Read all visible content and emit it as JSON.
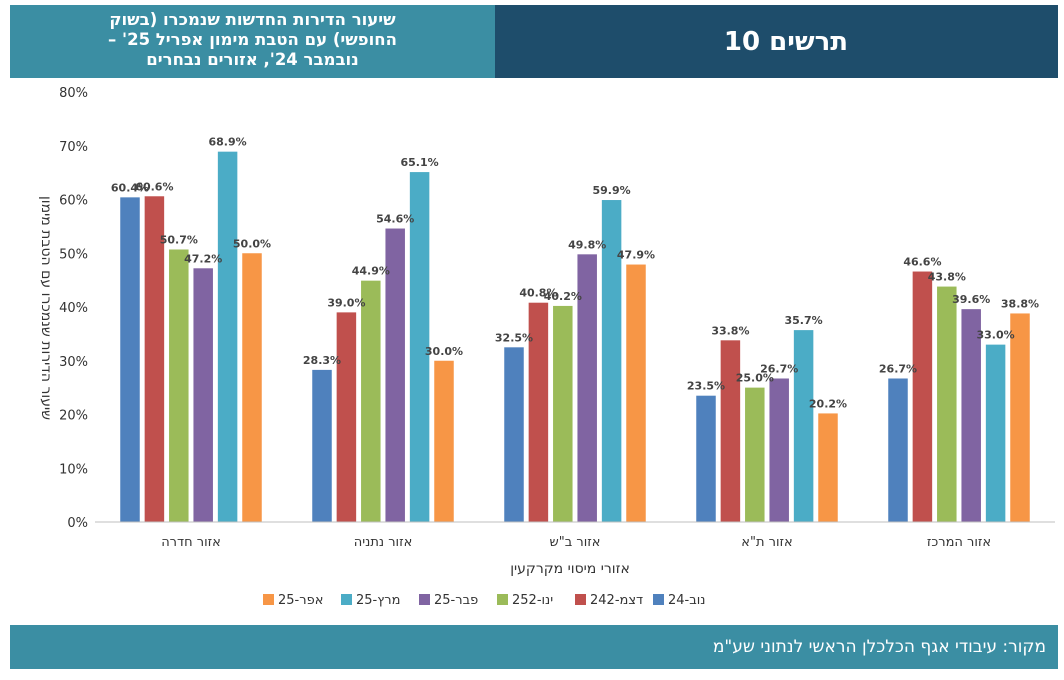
{
  "header": {
    "chart_number": "תרשים 10",
    "subtitle_lines": [
      "שיעור הדירות החדשות שנמכרו (בשוק",
      "החופשי) עם הטבת מימון אפריל 25' –",
      "נובמבר 24', אזורים נבחרים"
    ]
  },
  "footer": {
    "source": "מקור: עיבודי אגף הכלכלן הראשי לנתוני שע\"מ"
  },
  "chart_data": {
    "type": "bar",
    "xlabel": "אזורי מיסוי מקרקעין",
    "ylabel": "שיעור הדירות שנמכרו עם הטבת מימון",
    "ylim": [
      0,
      80
    ],
    "y_ticks": [
      "0%",
      "10%",
      "20%",
      "30%",
      "40%",
      "50%",
      "60%",
      "70%",
      "80%"
    ],
    "grid": false,
    "legend_position": "bottom",
    "categories": [
      "אזור המרכז",
      "אזור ת\"א",
      "אזור ב\"ש",
      "אזור נתניה",
      "אזור חדרה"
    ],
    "series": [
      {
        "name": "נוב-24",
        "color": "#4f81bd",
        "values": [
          26.7,
          23.5,
          32.5,
          28.3,
          60.4
        ],
        "labels": [
          "26.7%",
          "23.5%",
          "32.5%",
          "28.3%",
          "60.4%"
        ]
      },
      {
        "name": "דצמ-242",
        "color": "#c0504d",
        "values": [
          46.6,
          33.8,
          40.8,
          39.0,
          60.6
        ],
        "labels": [
          "46.6%",
          "33.8%",
          "40.8%",
          "39.0%",
          "60.6%"
        ]
      },
      {
        "name": "ינו-252",
        "color": "#9bbb59",
        "values": [
          43.8,
          25.0,
          40.2,
          44.9,
          50.7
        ],
        "labels": [
          "43.8%",
          "25.0%",
          "40.2%",
          "44.9%",
          "50.7%"
        ]
      },
      {
        "name": "פבר-25",
        "color": "#8064a2",
        "values": [
          39.6,
          26.7,
          49.8,
          54.6,
          47.2
        ],
        "labels": [
          "39.6%",
          "26.7%",
          "49.8%",
          "54.6%",
          "47.2%"
        ]
      },
      {
        "name": "מרץ-25",
        "color": "#4bacc6",
        "values": [
          33.0,
          35.7,
          59.9,
          65.1,
          68.9
        ],
        "labels": [
          "33.0%",
          "35.7%",
          "59.9%",
          "65.1%",
          "68.9%"
        ]
      },
      {
        "name": "אפר-25",
        "color": "#f79646",
        "values": [
          38.8,
          20.2,
          47.9,
          30.0,
          50.0
        ],
        "labels": [
          "38.8%",
          "20.2%",
          "47.9%",
          "30.0%",
          "50.0%"
        ]
      }
    ]
  }
}
